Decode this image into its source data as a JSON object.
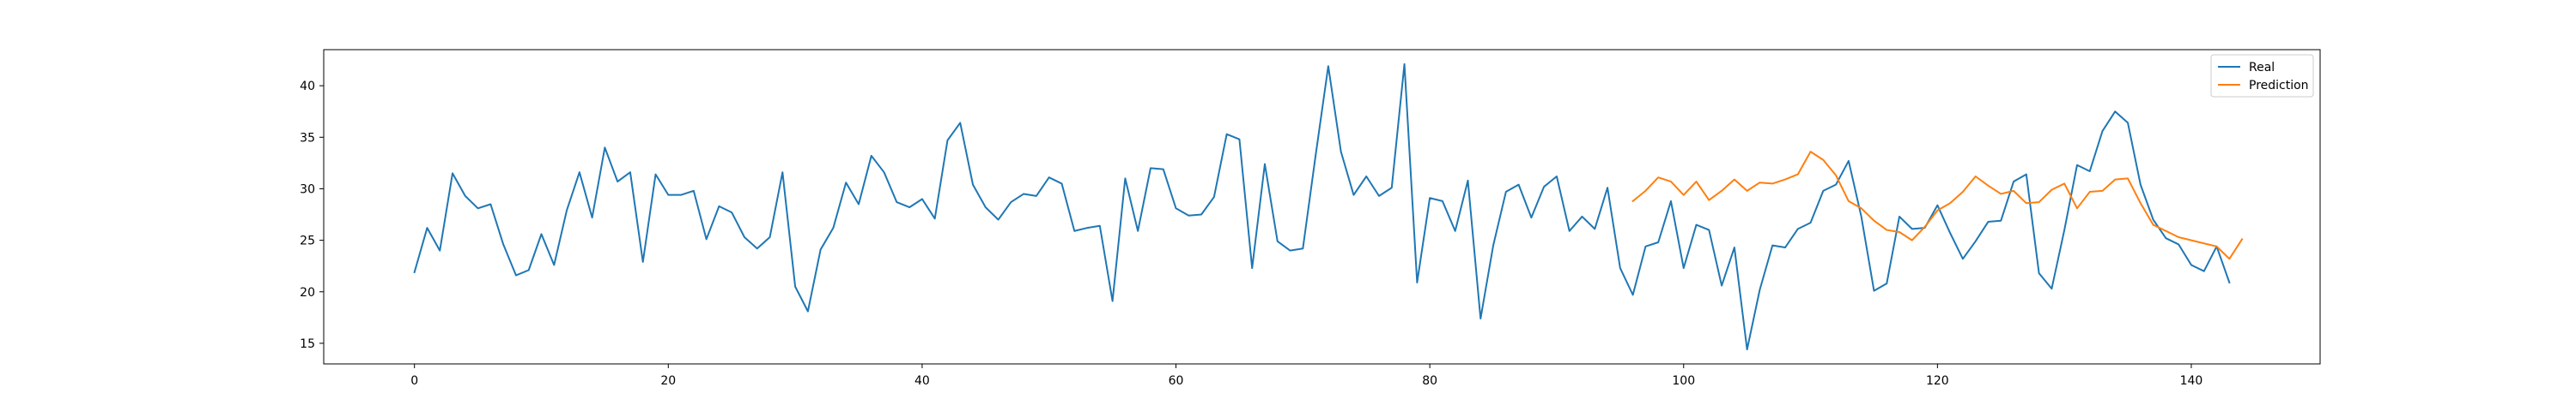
{
  "chart_data": {
    "type": "line",
    "title": "",
    "xlabel": "",
    "ylabel": "",
    "xlim": [
      -7.15,
      150.15
    ],
    "ylim": [
      13.0,
      43.5
    ],
    "xticks": [
      0,
      20,
      40,
      60,
      80,
      100,
      120,
      140
    ],
    "yticks": [
      15,
      20,
      25,
      30,
      35,
      40
    ],
    "grid": false,
    "legend": "top-right",
    "series": [
      {
        "name": "Real",
        "color": "#1f77b4",
        "x_start": 0,
        "values": [
          21.9,
          26.2,
          24.0,
          31.5,
          29.3,
          28.1,
          28.5,
          24.6,
          21.6,
          22.1,
          25.6,
          22.6,
          27.9,
          31.6,
          27.2,
          34.0,
          30.7,
          31.6,
          22.9,
          31.4,
          29.4,
          29.4,
          29.8,
          25.1,
          28.3,
          27.7,
          25.3,
          24.2,
          25.3,
          31.6,
          20.5,
          18.1,
          24.1,
          26.2,
          30.6,
          28.5,
          33.2,
          31.6,
          28.7,
          28.2,
          29.0,
          27.1,
          34.7,
          36.4,
          30.4,
          28.2,
          27.0,
          28.7,
          29.5,
          29.3,
          31.1,
          30.5,
          25.9,
          26.2,
          26.4,
          19.1,
          31.0,
          25.9,
          32.0,
          31.9,
          28.1,
          27.4,
          27.5,
          29.2,
          35.3,
          34.8,
          22.3,
          32.4,
          24.9,
          24.0,
          24.2,
          33.2,
          41.9,
          33.6,
          29.4,
          31.2,
          29.3,
          30.1,
          42.1,
          20.9,
          29.1,
          28.8,
          25.9,
          30.8,
          17.4,
          24.5,
          29.7,
          30.4,
          27.2,
          30.2,
          31.2,
          25.9,
          27.3,
          26.1,
          30.1,
          22.3,
          19.7,
          24.4,
          24.8,
          28.8,
          22.3,
          26.5,
          26.0,
          20.6,
          24.3,
          14.4,
          20.2,
          24.5,
          24.3,
          26.1,
          26.7,
          29.8,
          30.4,
          32.7,
          27.3,
          20.1,
          20.8,
          27.3,
          26.1,
          26.2,
          28.4,
          25.7,
          23.2,
          24.9,
          26.8,
          26.9,
          30.7,
          31.4,
          21.8,
          20.3,
          26.0,
          32.3,
          31.7,
          35.6,
          37.5,
          36.4,
          30.4,
          27.0,
          25.2,
          24.6,
          22.6,
          22.0,
          24.4,
          20.9
        ]
      },
      {
        "name": "Prediction",
        "color": "#ff7f0e",
        "x_start": 96,
        "values": [
          28.8,
          29.8,
          31.1,
          30.7,
          29.4,
          30.7,
          28.9,
          29.8,
          30.9,
          29.8,
          30.6,
          30.5,
          30.9,
          31.4,
          33.6,
          32.8,
          31.3,
          28.8,
          28.1,
          26.9,
          26.0,
          25.8,
          25.0,
          26.3,
          27.9,
          28.6,
          29.7,
          31.2,
          30.3,
          29.5,
          29.8,
          28.6,
          28.7,
          29.9,
          30.5,
          28.1,
          29.7,
          29.8,
          30.9,
          31.0,
          28.6,
          26.5,
          25.9,
          25.3,
          25.0,
          24.7,
          24.4,
          23.2,
          25.1
        ]
      }
    ]
  }
}
